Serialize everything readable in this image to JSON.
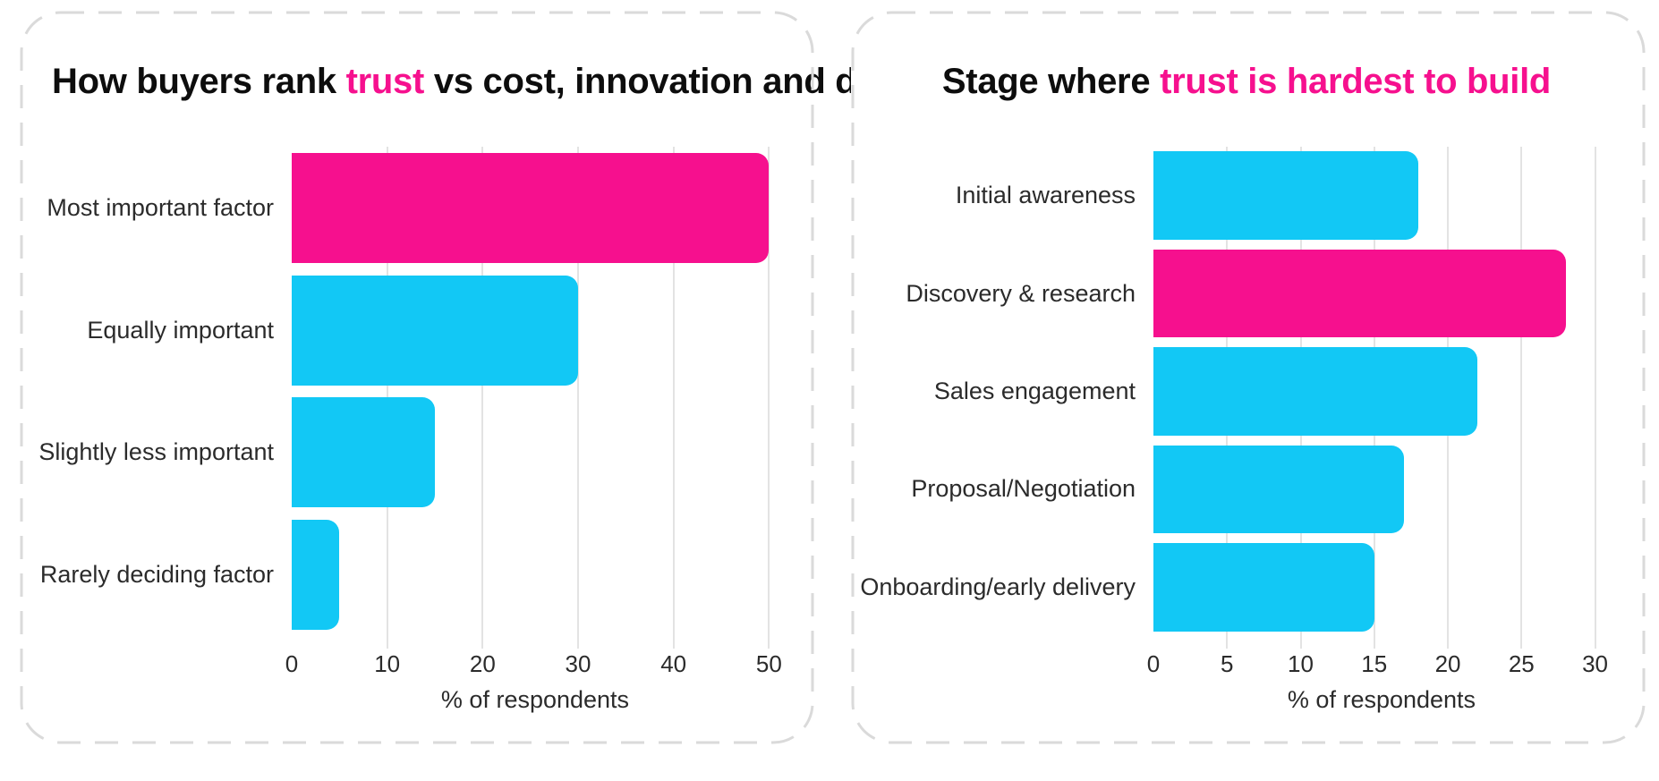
{
  "colors": {
    "accent_pink": "#F6108E",
    "bar_cyan": "#12C8F5",
    "gridline": "#E3E3E3",
    "card_border": "#DADADA",
    "title_text": "#0D0D0D",
    "label_text": "#2B2B2B",
    "background": "#FFFFFF"
  },
  "chart_data": [
    {
      "type": "bar",
      "orientation": "horizontal",
      "title": "How buyers rank trust vs cost, innovation and delivery",
      "title_segments": [
        {
          "text": "How buyers rank ",
          "accent": false
        },
        {
          "text": "trust",
          "accent": true
        },
        {
          "text": " vs cost, innovation and delivery",
          "accent": false
        }
      ],
      "categories": [
        "Most important factor",
        "Equally important",
        "Slightly less important",
        "Rarely deciding factor"
      ],
      "values": [
        50,
        30,
        15,
        5
      ],
      "bar_colors": [
        "#F6108E",
        "#12C8F5",
        "#12C8F5",
        "#12C8F5"
      ],
      "highlight_category": "Most important factor",
      "xlabel": "% of respondents",
      "xticks": [
        0,
        10,
        20,
        30,
        40,
        50
      ],
      "xlim": [
        0,
        51
      ],
      "grid": "vertical",
      "legend": "none"
    },
    {
      "type": "bar",
      "orientation": "horizontal",
      "title": "Stage where trust is hardest to build",
      "title_segments": [
        {
          "text": "Stage where ",
          "accent": false
        },
        {
          "text": "trust is hardest to build",
          "accent": true
        }
      ],
      "categories": [
        "Initial awareness",
        "Discovery & research",
        "Sales engagement",
        "Proposal/Negotiation",
        "Onboarding/early delivery"
      ],
      "values": [
        18,
        28,
        22,
        17,
        15
      ],
      "bar_colors": [
        "#12C8F5",
        "#F6108E",
        "#12C8F5",
        "#12C8F5",
        "#12C8F5"
      ],
      "highlight_category": "Discovery & research",
      "xlabel": "% of respondents",
      "xticks": [
        0,
        5,
        10,
        15,
        20,
        25,
        30
      ],
      "xlim": [
        0,
        31
      ],
      "grid": "vertical",
      "legend": "none"
    }
  ]
}
